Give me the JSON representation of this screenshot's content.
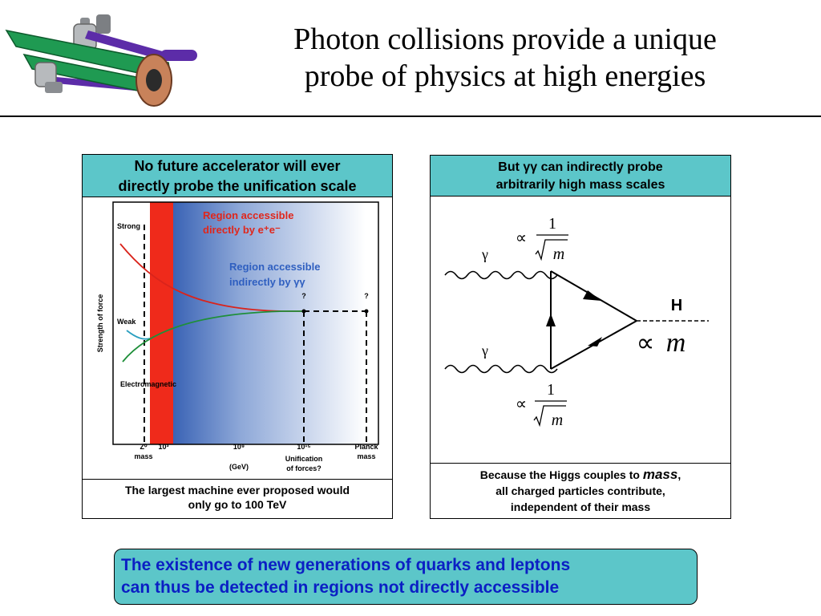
{
  "title_line1": "Photon collisions provide a unique",
  "title_line2": "probe of physics at high energies",
  "left_panel": {
    "header_line1": "No future accelerator will ever",
    "header_line2": "directly probe the unification scale",
    "caption_line1": "The largest machine ever proposed would",
    "caption_line2": "only go to 100 TeV",
    "region_direct_line1": "Region accessible",
    "region_direct_line2": "directly by e⁺e⁻",
    "region_indirect_line1": "Region accessible",
    "region_indirect_line2": "indirectly by γγ",
    "ylabel": "Strength of force",
    "label_strong": "Strong",
    "label_weak": "Weak",
    "label_em": "Electromagnetic",
    "tick_z0": "Z⁰",
    "tick_z0_sub": "mass",
    "tick_1e3": "10³",
    "tick_1e9": "10⁹",
    "tick_1e15": "10¹⁵",
    "tick_planck": "Planck",
    "tick_planck_sub": "mass",
    "unif_line1": "Unification",
    "unif_line2": "of forces?",
    "xunit": "(GeV)",
    "q1": "?",
    "q2": "?"
  },
  "right_panel": {
    "header_line1": "But γγ can indirectly probe",
    "header_line2": "arbitrarily high mass scales",
    "gamma_top": "γ",
    "gamma_bottom": "γ",
    "higgs_label": "H",
    "prop_sym": "∝",
    "num_one": "1",
    "m": "m",
    "caption_line1_a": "Because the Higgs couples to ",
    "caption_line1_em": "mass",
    "caption_line1_b": ",",
    "caption_line2": "all charged particles contribute,",
    "caption_line3": "independent of their mass"
  },
  "bottom_box": {
    "line1": "The existence of new generations of quarks and leptons",
    "line2": "can thus be detected in regions not directly accessible"
  },
  "colors": {
    "teal": "#5cc6c9",
    "strong_curve": "#d9241c",
    "weak_curve": "#2a9fc0",
    "em_curve": "#1f8f3a",
    "direct_text": "#e0261b",
    "indirect_text": "#2f5fc0",
    "bottom_text": "#0b1fc4"
  }
}
